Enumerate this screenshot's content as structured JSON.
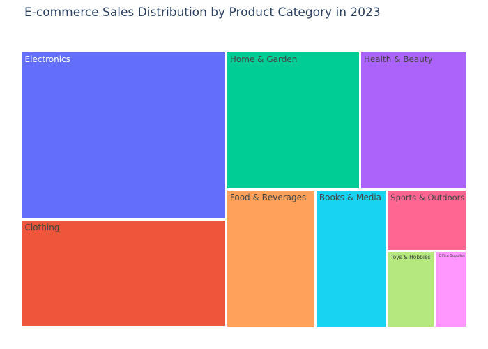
{
  "chart_data": {
    "type": "treemap",
    "title": "E-commerce Sales Distribution by Product Category in 2023",
    "categories": [
      {
        "label": "Electronics",
        "value": 28,
        "color": "#636efa",
        "text_color": "#ffffff"
      },
      {
        "label": "Clothing",
        "value": 18,
        "color": "#ef553b",
        "text_color": "#444444"
      },
      {
        "label": "Home & Garden",
        "value": 15,
        "color": "#00cc96",
        "text_color": "#444444"
      },
      {
        "label": "Health & Beauty",
        "value": 12,
        "color": "#ab63fa",
        "text_color": "#444444"
      },
      {
        "label": "Food & Beverages",
        "value": 10,
        "color": "#ffa15a",
        "text_color": "#444444"
      },
      {
        "label": "Books & Media",
        "value": 8,
        "color": "#19d3f3",
        "text_color": "#444444"
      },
      {
        "label": "Sports & Outdoors",
        "value": 4,
        "color": "#ff6692",
        "text_color": "#444444"
      },
      {
        "label": "Toys & Hobbies",
        "value": 3,
        "color": "#b6e880",
        "text_color": "#444444"
      },
      {
        "label": "Office Supplies",
        "value": 2,
        "color": "#ff97ff",
        "text_color": "#444444"
      }
    ]
  }
}
